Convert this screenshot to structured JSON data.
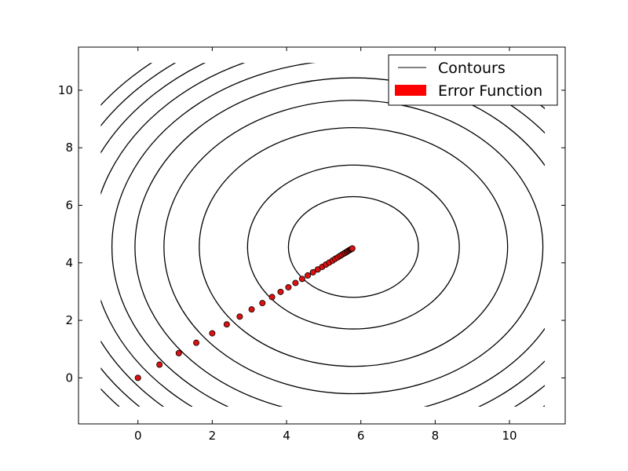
{
  "chart_data": {
    "type": "scatter",
    "title": "",
    "xlabel": "",
    "ylabel": "",
    "xlim": [
      -1.6,
      11.5
    ],
    "ylim": [
      -1.6,
      11.5
    ],
    "xticks": [
      0,
      2,
      4,
      6,
      8,
      10
    ],
    "yticks": [
      0,
      2,
      4,
      6,
      8,
      10
    ],
    "grid": false,
    "legend": {
      "placement": "top-right",
      "entries": [
        {
          "label": "Contours",
          "style": "line",
          "color": "#000000"
        },
        {
          "label": "Error Function",
          "style": "patch",
          "color": "#ff0000"
        }
      ]
    },
    "contours": {
      "color": "#000000",
      "center": [
        5.8,
        4.55
      ],
      "x_semi_axes": [
        1.75,
        2.85,
        4.15,
        5.1,
        5.88,
        6.5,
        7.05,
        7.55,
        8.0,
        8.4
      ],
      "y_to_x_axis_ratio": 1.0
    },
    "series": [
      {
        "color": "#dd1111",
        "edge": "#000000",
        "points": [
          [
            0.0,
            0.0
          ],
          [
            0.58,
            0.46
          ],
          [
            1.1,
            0.86
          ],
          [
            1.57,
            1.22
          ],
          [
            2.0,
            1.55
          ],
          [
            2.39,
            1.86
          ],
          [
            2.74,
            2.13
          ],
          [
            3.06,
            2.38
          ],
          [
            3.35,
            2.6
          ],
          [
            3.61,
            2.81
          ],
          [
            3.84,
            2.99
          ],
          [
            4.05,
            3.15
          ],
          [
            4.24,
            3.3
          ],
          [
            4.42,
            3.44
          ],
          [
            4.57,
            3.56
          ],
          [
            4.71,
            3.67
          ],
          [
            4.84,
            3.77
          ],
          [
            4.96,
            3.86
          ],
          [
            5.06,
            3.94
          ],
          [
            5.15,
            4.01
          ],
          [
            5.24,
            4.08
          ],
          [
            5.31,
            4.14
          ],
          [
            5.38,
            4.19
          ],
          [
            5.44,
            4.24
          ],
          [
            5.49,
            4.28
          ],
          [
            5.54,
            4.32
          ],
          [
            5.58,
            4.35
          ],
          [
            5.62,
            4.38
          ],
          [
            5.65,
            4.41
          ],
          [
            5.68,
            4.43
          ],
          [
            5.71,
            4.45
          ],
          [
            5.73,
            4.47
          ],
          [
            5.75,
            4.48
          ],
          [
            5.77,
            4.5
          ]
        ]
      }
    ]
  }
}
